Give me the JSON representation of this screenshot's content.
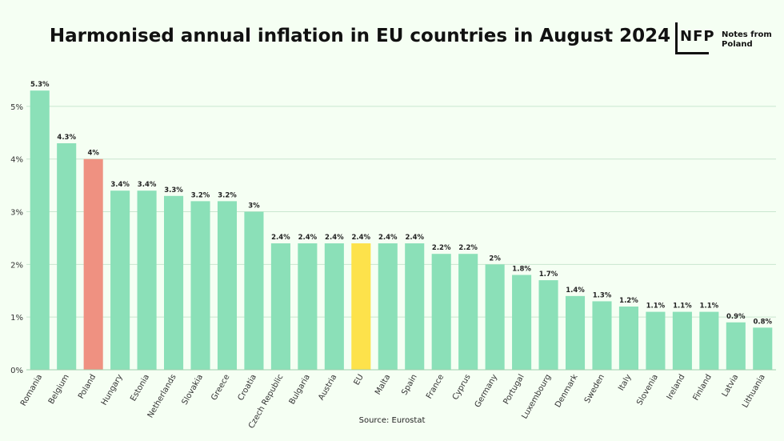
{
  "header": {
    "title": "Harmonised annual inflation in EU countries in August 2024"
  },
  "logo": {
    "mark": "NFP",
    "name": "Notes from Poland"
  },
  "footer": {
    "source": "Source: Eurostat"
  },
  "colors": {
    "default": "#8be0b8",
    "poland": "#ef9181",
    "eu": "#fde24b",
    "background": "#f5fff3",
    "grid": "#c9e6cf"
  },
  "chart_data": {
    "type": "bar",
    "title": "Harmonised annual inflation in EU countries in August 2024",
    "xlabel": "",
    "ylabel": "",
    "ylim": [
      0,
      5.5
    ],
    "yticks": [
      0,
      1,
      2,
      3,
      4,
      5
    ],
    "ytick_labels": [
      "0%",
      "1%",
      "2%",
      "3%",
      "4%",
      "5%"
    ],
    "grid": true,
    "categories": [
      "Romania",
      "Belgium",
      "Poland",
      "Hungary",
      "Estonia",
      "Netherlands",
      "Slovakia",
      "Greece",
      "Croatia",
      "Czech Republic",
      "Bulgaria",
      "Austria",
      "EU",
      "Malta",
      "Spain",
      "France",
      "Cyprus",
      "Germany",
      "Portugal",
      "Luxembourg",
      "Denmark",
      "Sweden",
      "Italy",
      "Slovenia",
      "Ireland",
      "Finland",
      "Latvia",
      "Lithuania"
    ],
    "values": [
      5.3,
      4.3,
      4.0,
      3.4,
      3.4,
      3.3,
      3.2,
      3.2,
      3.0,
      2.4,
      2.4,
      2.4,
      2.4,
      2.4,
      2.4,
      2.2,
      2.2,
      2.0,
      1.8,
      1.7,
      1.4,
      1.3,
      1.2,
      1.1,
      1.1,
      1.1,
      0.9,
      0.8
    ],
    "data_labels": [
      "5.3%",
      "4.3%",
      "4%",
      "3.4%",
      "3.4%",
      "3.3%",
      "3.2%",
      "3.2%",
      "3%",
      "2.4%",
      "2.4%",
      "2.4%",
      "2.4%",
      "2.4%",
      "2.4%",
      "2.2%",
      "2.2%",
      "2%",
      "1.8%",
      "1.7%",
      "1.4%",
      "1.3%",
      "1.2%",
      "1.1%",
      "1.1%",
      "1.1%",
      "0.9%",
      "0.8%"
    ],
    "highlights": {
      "Poland": "poland",
      "EU": "eu"
    }
  }
}
